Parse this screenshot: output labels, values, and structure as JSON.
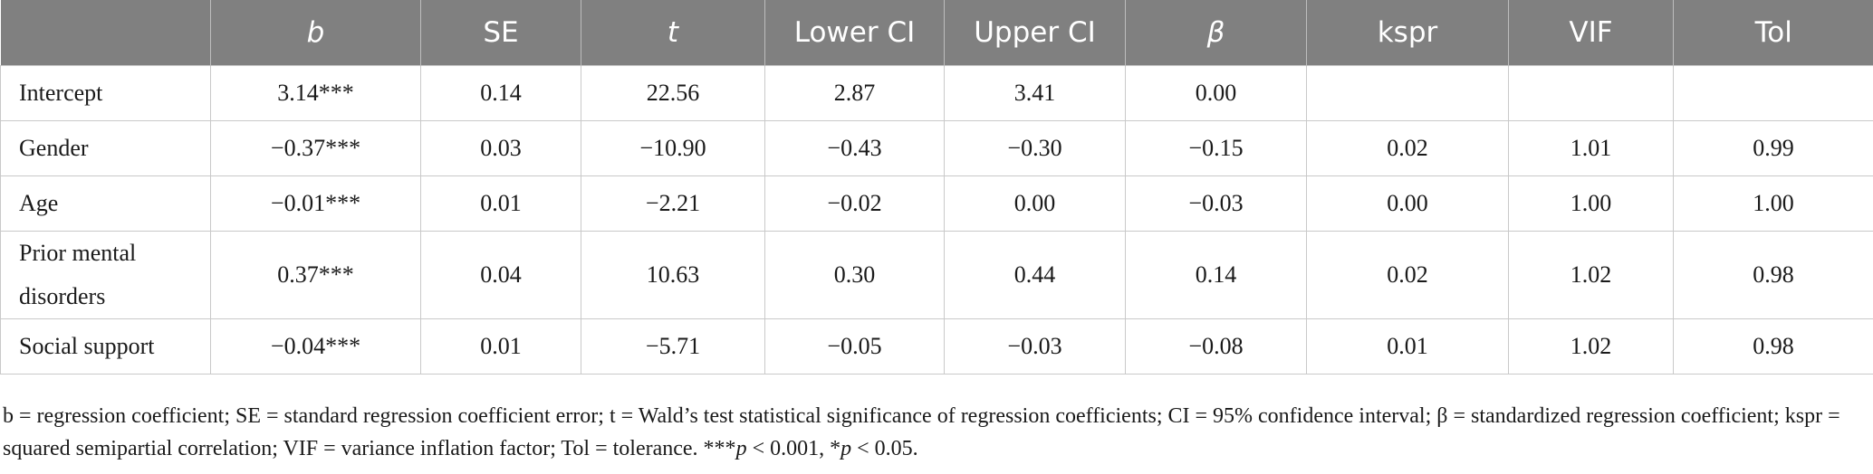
{
  "table": {
    "headers": [
      "",
      "b",
      "SE",
      "t",
      "Lower CI",
      "Upper CI",
      "β",
      "kspr",
      "VIF",
      "Tol"
    ],
    "rows": [
      [
        "Intercept",
        "3.14***",
        "0.14",
        "22.56",
        "2.87",
        "3.41",
        "0.00",
        "",
        "",
        ""
      ],
      [
        "Gender",
        "−0.37***",
        "0.03",
        "−10.90",
        "−0.43",
        "−0.30",
        "−0.15",
        "0.02",
        "1.01",
        "0.99"
      ],
      [
        "Age",
        "−0.01***",
        "0.01",
        "−2.21",
        "−0.02",
        "0.00",
        "−0.03",
        "0.00",
        "1.00",
        "1.00"
      ],
      [
        "Prior mental disorders",
        "0.37***",
        "0.04",
        "10.63",
        "0.30",
        "0.44",
        "0.14",
        "0.02",
        "1.02",
        "0.98"
      ],
      [
        "Social support",
        "−0.04***",
        "0.01",
        "−5.71",
        "−0.05",
        "−0.03",
        "−0.08",
        "0.01",
        "1.02",
        "0.98"
      ]
    ]
  },
  "footnote": {
    "text": "b = regression coefficient; SE = standard regression coefficient error; t = Wald’s test statistical significance of regression coefficients; CI = 95% confidence interval; β = standardized regression coefficient; kspr = squared semipartial correlation; VIF = variance inflation factor; Tol = tolerance. ***",
    "p1": "p",
    "t1": " < 0.001, *",
    "p2": "p",
    "t2": " < 0.05."
  }
}
